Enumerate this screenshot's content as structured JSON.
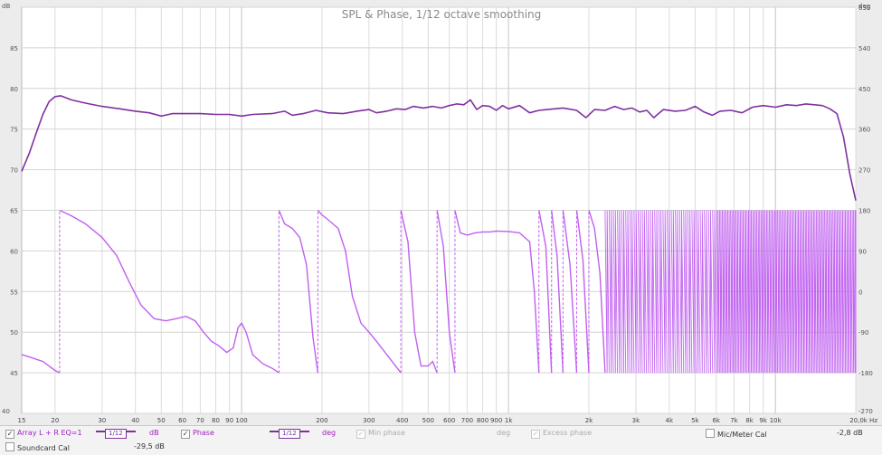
{
  "chart_data": {
    "type": "line",
    "title": "SPL & Phase, 1/12 octave smoothing",
    "x_unit": "Hz",
    "x_scale": "log",
    "xlim": [
      15,
      20000
    ],
    "x_ticks": [
      {
        "v": 15,
        "label": "15"
      },
      {
        "v": 20,
        "label": "20"
      },
      {
        "v": 30,
        "label": "30"
      },
      {
        "v": 40,
        "label": "40"
      },
      {
        "v": 50,
        "label": "50"
      },
      {
        "v": 60,
        "label": "60"
      },
      {
        "v": 70,
        "label": "70"
      },
      {
        "v": 80,
        "label": "80"
      },
      {
        "v": 90,
        "label": "90"
      },
      {
        "v": 100,
        "label": "100"
      },
      {
        "v": 200,
        "label": "200"
      },
      {
        "v": 300,
        "label": "300"
      },
      {
        "v": 400,
        "label": "400"
      },
      {
        "v": 500,
        "label": "500"
      },
      {
        "v": 600,
        "label": "600"
      },
      {
        "v": 700,
        "label": "700"
      },
      {
        "v": 800,
        "label": "800"
      },
      {
        "v": 900,
        "label": "900"
      },
      {
        "v": 1000,
        "label": "1k"
      },
      {
        "v": 2000,
        "label": "2k"
      },
      {
        "v": 3000,
        "label": "3k"
      },
      {
        "v": 4000,
        "label": "4k"
      },
      {
        "v": 5000,
        "label": "5k"
      },
      {
        "v": 6000,
        "label": "6k"
      },
      {
        "v": 7000,
        "label": "7k"
      },
      {
        "v": 8000,
        "label": "8k"
      },
      {
        "v": 9000,
        "label": "9k"
      },
      {
        "v": 10000,
        "label": "10k"
      },
      {
        "v": 20000,
        "label": "20,0k Hz"
      }
    ],
    "y_left": {
      "unit": "dB",
      "ylim": [
        40,
        90
      ],
      "ticks": [
        40,
        45,
        50,
        55,
        60,
        65,
        70,
        75,
        80,
        85,
        90
      ]
    },
    "y_right": {
      "unit": "deg",
      "ylim": [
        -270,
        630
      ],
      "ticks": [
        -270,
        -180,
        -90,
        0,
        90,
        180,
        270,
        360,
        450,
        540,
        630
      ]
    },
    "grid": true,
    "series": [
      {
        "name": "Array L + R EQ=1",
        "axis": "left",
        "color": "#8030a0",
        "points": [
          [
            15,
            69.8
          ],
          [
            16,
            72
          ],
          [
            17,
            74.5
          ],
          [
            18,
            76.8
          ],
          [
            19,
            78.4
          ],
          [
            20,
            79.0
          ],
          [
            21,
            79.1
          ],
          [
            23,
            78.6
          ],
          [
            26,
            78.2
          ],
          [
            30,
            77.8
          ],
          [
            35,
            77.5
          ],
          [
            40,
            77.2
          ],
          [
            45,
            77.0
          ],
          [
            50,
            76.6
          ],
          [
            55,
            76.9
          ],
          [
            60,
            76.9
          ],
          [
            70,
            76.9
          ],
          [
            80,
            76.8
          ],
          [
            90,
            76.8
          ],
          [
            100,
            76.6
          ],
          [
            110,
            76.8
          ],
          [
            130,
            76.9
          ],
          [
            145,
            77.2
          ],
          [
            155,
            76.7
          ],
          [
            170,
            76.9
          ],
          [
            190,
            77.3
          ],
          [
            210,
            77.0
          ],
          [
            240,
            76.9
          ],
          [
            270,
            77.2
          ],
          [
            300,
            77.4
          ],
          [
            320,
            77.0
          ],
          [
            350,
            77.2
          ],
          [
            380,
            77.5
          ],
          [
            410,
            77.4
          ],
          [
            440,
            77.8
          ],
          [
            480,
            77.6
          ],
          [
            520,
            77.8
          ],
          [
            560,
            77.6
          ],
          [
            600,
            77.9
          ],
          [
            640,
            78.1
          ],
          [
            680,
            78.0
          ],
          [
            720,
            78.6
          ],
          [
            760,
            77.4
          ],
          [
            800,
            77.9
          ],
          [
            850,
            77.8
          ],
          [
            900,
            77.3
          ],
          [
            950,
            77.9
          ],
          [
            1000,
            77.5
          ],
          [
            1100,
            77.9
          ],
          [
            1200,
            77.0
          ],
          [
            1300,
            77.3
          ],
          [
            1400,
            77.4
          ],
          [
            1600,
            77.6
          ],
          [
            1800,
            77.3
          ],
          [
            1950,
            76.4
          ],
          [
            2100,
            77.4
          ],
          [
            2300,
            77.3
          ],
          [
            2500,
            77.8
          ],
          [
            2700,
            77.4
          ],
          [
            2900,
            77.6
          ],
          [
            3100,
            77.1
          ],
          [
            3300,
            77.3
          ],
          [
            3500,
            76.4
          ],
          [
            3800,
            77.4
          ],
          [
            4200,
            77.2
          ],
          [
            4600,
            77.3
          ],
          [
            5000,
            77.8
          ],
          [
            5400,
            77.1
          ],
          [
            5800,
            76.7
          ],
          [
            6200,
            77.2
          ],
          [
            6800,
            77.3
          ],
          [
            7500,
            77.0
          ],
          [
            8200,
            77.7
          ],
          [
            9000,
            77.9
          ],
          [
            10000,
            77.7
          ],
          [
            11000,
            78.0
          ],
          [
            12000,
            77.9
          ],
          [
            13000,
            78.1
          ],
          [
            14000,
            78.0
          ],
          [
            15000,
            77.9
          ],
          [
            16000,
            77.5
          ],
          [
            17000,
            76.9
          ],
          [
            18000,
            74.0
          ],
          [
            19000,
            69.5
          ],
          [
            20000,
            66.2
          ]
        ]
      },
      {
        "name": "Phase",
        "axis": "right",
        "color": "#c060f0",
        "points": [
          [
            15,
            -140
          ],
          [
            16,
            -145
          ],
          [
            18,
            -155
          ],
          [
            20,
            -175
          ],
          [
            20.8,
            -180
          ],
          [
            20.8,
            180
          ],
          [
            23,
            168
          ],
          [
            26,
            150
          ],
          [
            30,
            120
          ],
          [
            34,
            80
          ],
          [
            38,
            20
          ],
          [
            42,
            -30
          ],
          [
            47,
            -60
          ],
          [
            52,
            -65
          ],
          [
            57,
            -60
          ],
          [
            62,
            -55
          ],
          [
            67,
            -65
          ],
          [
            72,
            -90
          ],
          [
            77,
            -110
          ],
          [
            82,
            -120
          ],
          [
            88,
            -135
          ],
          [
            93,
            -125
          ],
          [
            97,
            -80
          ],
          [
            100,
            -70
          ],
          [
            104,
            -90
          ],
          [
            110,
            -140
          ],
          [
            120,
            -160
          ],
          [
            130,
            -170
          ],
          [
            138,
            -180
          ],
          [
            138,
            180
          ],
          [
            145,
            150
          ],
          [
            155,
            140
          ],
          [
            165,
            120
          ],
          [
            175,
            60
          ],
          [
            185,
            -100
          ],
          [
            193,
            -180
          ],
          [
            193,
            180
          ],
          [
            200,
            170
          ],
          [
            210,
            160
          ],
          [
            220,
            150
          ],
          [
            230,
            140
          ],
          [
            245,
            90
          ],
          [
            260,
            -10
          ],
          [
            280,
            -70
          ],
          [
            300,
            -90
          ],
          [
            320,
            -110
          ],
          [
            350,
            -140
          ],
          [
            395,
            -180
          ],
          [
            395,
            180
          ],
          [
            420,
            110
          ],
          [
            445,
            -90
          ],
          [
            470,
            -165
          ],
          [
            500,
            -165
          ],
          [
            520,
            -155
          ],
          [
            540,
            -180
          ],
          [
            540,
            180
          ],
          [
            570,
            100
          ],
          [
            600,
            -90
          ],
          [
            630,
            -180
          ],
          [
            630,
            180
          ],
          [
            660,
            130
          ],
          [
            700,
            125
          ],
          [
            750,
            130
          ],
          [
            800,
            132
          ],
          [
            850,
            132
          ],
          [
            900,
            134
          ],
          [
            1000,
            133
          ],
          [
            1100,
            130
          ],
          [
            1200,
            110
          ],
          [
            1250,
            0
          ],
          [
            1300,
            -180
          ],
          [
            1300,
            180
          ],
          [
            1380,
            100
          ],
          [
            1450,
            -180
          ],
          [
            1450,
            180
          ],
          [
            1520,
            80
          ],
          [
            1600,
            -180
          ],
          [
            1600,
            180
          ],
          [
            1700,
            60
          ],
          [
            1800,
            -180
          ],
          [
            1800,
            180
          ],
          [
            1900,
            70
          ],
          [
            2000,
            -180
          ],
          [
            2000,
            180
          ],
          [
            2100,
            140
          ],
          [
            2200,
            40
          ],
          [
            2300,
            -180
          ]
        ]
      }
    ],
    "phase_wrap_region": {
      "from_hz": 2300,
      "to_hz": 20000,
      "description_bounds_deg": [
        -180,
        180
      ]
    }
  },
  "legend": {
    "row1": {
      "series1_label": "Array L + R EQ=1",
      "smoothing_label": "1/12",
      "series1_unit": "dB",
      "phase_label": "Phase",
      "phase_smoothing_label": "1/12",
      "phase_unit": "deg",
      "min_phase_label": "Min phase",
      "min_phase_unit": "deg",
      "excess_phase_label": "Excess phase",
      "mic_cal_label": "Mic/Meter Cal",
      "mic_cal_value": "-2,8 dB"
    },
    "row2": {
      "soundcard_label": "Soundcard Cal",
      "soundcard_value": "-29,5 dB"
    }
  }
}
